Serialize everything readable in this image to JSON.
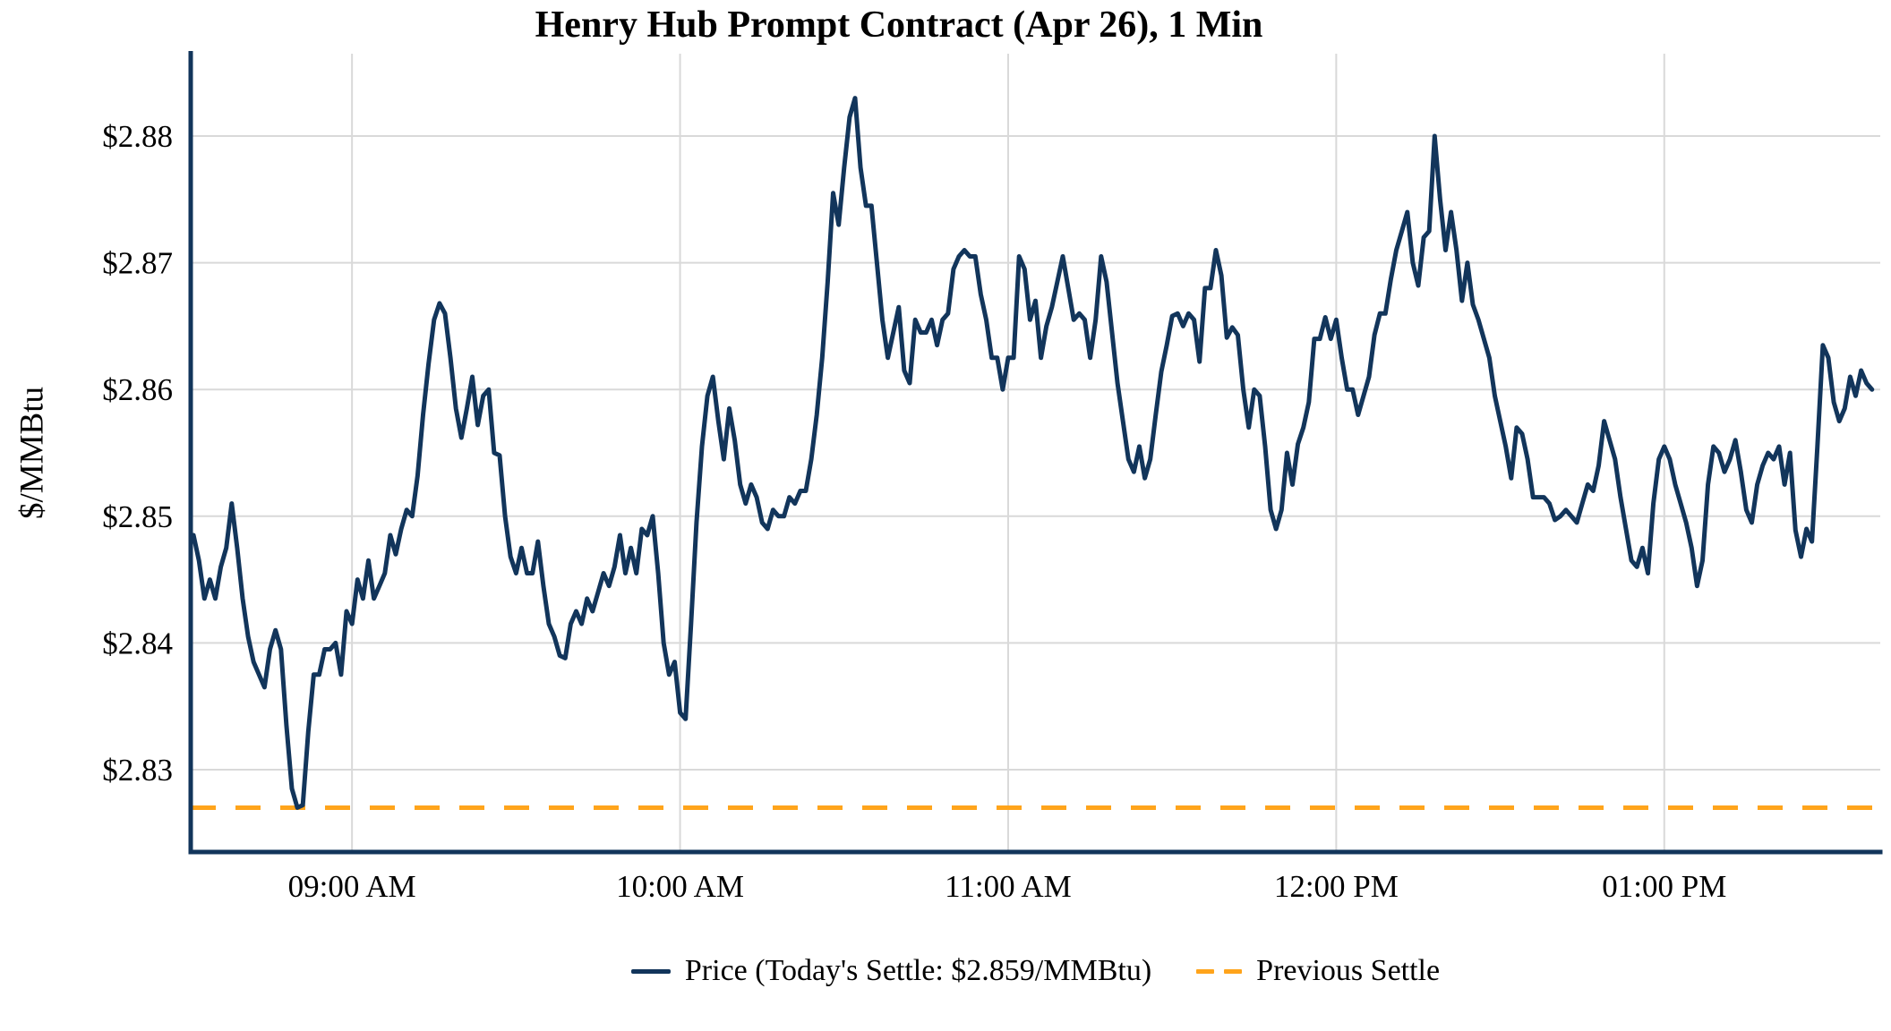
{
  "chart_data": {
    "type": "line",
    "title": "Henry Hub Prompt Contract (Apr 26), 1 Min",
    "ylabel": "$/MMBtu",
    "grid": true,
    "legend_position": "bottom-center",
    "today_settle": 2.859,
    "previous_settle": 2.827,
    "colors": {
      "price_line": "#12355b",
      "previous_settle_line": "#ffa41b",
      "gridline": "#d9d9d9",
      "axis_spine": "#12355b"
    },
    "x_axis": {
      "unit": "minutes after 08:30 AM",
      "range": [
        0.5,
        309.5
      ],
      "ticks": [
        {
          "t": 30,
          "label": "09:00 AM"
        },
        {
          "t": 90,
          "label": "10:00 AM"
        },
        {
          "t": 150,
          "label": "11:00 AM"
        },
        {
          "t": 210,
          "label": "12:00 PM"
        },
        {
          "t": 270,
          "label": "01:00 PM"
        }
      ]
    },
    "y_axis": {
      "range": [
        2.8235,
        2.8865
      ],
      "ticks": [
        {
          "value": 2.88,
          "label": "$2.88"
        },
        {
          "value": 2.87,
          "label": "$2.87"
        },
        {
          "value": 2.86,
          "label": "$2.86"
        },
        {
          "value": 2.85,
          "label": "$2.85"
        },
        {
          "value": 2.84,
          "label": "$2.84"
        },
        {
          "value": 2.83,
          "label": "$2.83"
        }
      ]
    },
    "series": [
      {
        "name": "Price (Today's Settle: $2.859/MMBtu)",
        "style": "solid",
        "color": "#12355b",
        "start_time": "08:31 AM",
        "start_offset_min": 1,
        "interval_min": 1,
        "values": [
          2.8485,
          2.8465,
          2.8435,
          2.845,
          2.8435,
          2.846,
          2.8475,
          2.851,
          2.8475,
          2.8435,
          2.8405,
          2.8385,
          2.8375,
          2.8365,
          2.8395,
          2.841,
          2.8395,
          2.8335,
          2.8285,
          2.827,
          2.8272,
          2.833,
          2.8375,
          2.8375,
          2.8395,
          2.8395,
          2.84,
          2.8375,
          2.8425,
          2.8415,
          2.845,
          2.8435,
          2.8465,
          2.8435,
          2.8445,
          2.8455,
          2.8485,
          2.847,
          2.849,
          2.8505,
          2.85,
          2.8532,
          2.858,
          2.862,
          2.8655,
          2.8668,
          2.866,
          2.8625,
          2.8585,
          2.8562,
          2.8585,
          2.861,
          2.8572,
          2.8595,
          2.86,
          2.855,
          2.8548,
          2.85,
          2.8468,
          2.8455,
          2.8475,
          2.8455,
          2.8455,
          2.848,
          2.8445,
          2.8415,
          2.8405,
          2.839,
          2.8388,
          2.8415,
          2.8425,
          2.8415,
          2.8435,
          2.8425,
          2.844,
          2.8455,
          2.8445,
          2.846,
          2.8485,
          2.8455,
          2.8475,
          2.8455,
          2.849,
          2.8485,
          2.85,
          2.8455,
          2.84,
          2.8375,
          2.8385,
          2.8345,
          2.834,
          2.8415,
          2.8495,
          2.8555,
          2.8595,
          2.861,
          2.8575,
          2.8545,
          2.8585,
          2.856,
          2.8525,
          2.851,
          2.8525,
          2.8515,
          2.8495,
          2.849,
          2.8505,
          2.85,
          2.85,
          2.8515,
          2.851,
          2.852,
          2.852,
          2.8545,
          2.858,
          2.8625,
          2.8685,
          2.8755,
          2.873,
          2.8775,
          2.8815,
          2.883,
          2.8775,
          2.8745,
          2.8745,
          2.87,
          2.8655,
          2.8625,
          2.8645,
          2.8665,
          2.8615,
          2.8605,
          2.8655,
          2.8645,
          2.8645,
          2.8655,
          2.8635,
          2.8655,
          2.866,
          2.8695,
          2.8705,
          2.871,
          2.8705,
          2.8705,
          2.8675,
          2.8655,
          2.8625,
          2.8625,
          2.86,
          2.8625,
          2.8625,
          2.8705,
          2.8695,
          2.8655,
          2.867,
          2.8625,
          2.865,
          2.8665,
          2.8685,
          2.8705,
          2.868,
          2.8655,
          2.866,
          2.8655,
          2.8625,
          2.8655,
          2.8705,
          2.8685,
          2.8645,
          2.8605,
          2.8575,
          2.8545,
          2.8535,
          2.8555,
          2.853,
          2.8545,
          2.858,
          2.8614,
          2.8635,
          2.8658,
          2.866,
          2.865,
          2.866,
          2.8655,
          2.8622,
          2.868,
          2.868,
          2.871,
          2.869,
          2.8641,
          2.8649,
          2.8643,
          2.86,
          2.857,
          2.86,
          2.8595,
          2.8555,
          2.8505,
          2.849,
          2.8505,
          2.855,
          2.8525,
          2.8557,
          2.857,
          2.859,
          2.864,
          2.864,
          2.8657,
          2.864,
          2.8655,
          2.8625,
          2.86,
          2.86,
          2.858,
          2.8595,
          2.861,
          2.8643,
          2.866,
          2.866,
          2.8687,
          2.871,
          2.8725,
          2.874,
          2.87,
          2.8682,
          2.872,
          2.8725,
          2.88,
          2.875,
          2.871,
          2.874,
          2.871,
          2.867,
          2.87,
          2.8667,
          2.8655,
          2.864,
          2.8625,
          2.8595,
          2.8575,
          2.8555,
          2.853,
          2.857,
          2.8565,
          2.8545,
          2.8515,
          2.8515,
          2.8515,
          2.851,
          2.8497,
          2.85,
          2.8505,
          2.85,
          2.8495,
          2.851,
          2.8525,
          2.852,
          2.854,
          2.8575,
          2.856,
          2.8545,
          2.8515,
          2.849,
          2.8465,
          2.846,
          2.8475,
          2.8455,
          2.851,
          2.8545,
          2.8555,
          2.8545,
          2.8525,
          2.851,
          2.8495,
          2.8475,
          2.8445,
          2.8465,
          2.8525,
          2.8555,
          2.855,
          2.8535,
          2.8545,
          2.856,
          2.8535,
          2.8505,
          2.8495,
          2.8525,
          2.854,
          2.855,
          2.8545,
          2.8555,
          2.8525,
          2.855,
          2.8489,
          2.8468,
          2.849,
          2.848,
          2.8555,
          2.8635,
          2.8625,
          2.859,
          2.8575,
          2.8585,
          2.861,
          2.8595,
          2.8615,
          2.8605,
          2.86
        ]
      },
      {
        "name": "Previous Settle",
        "style": "dashed",
        "color": "#ffa41b",
        "value": 2.827
      }
    ]
  }
}
